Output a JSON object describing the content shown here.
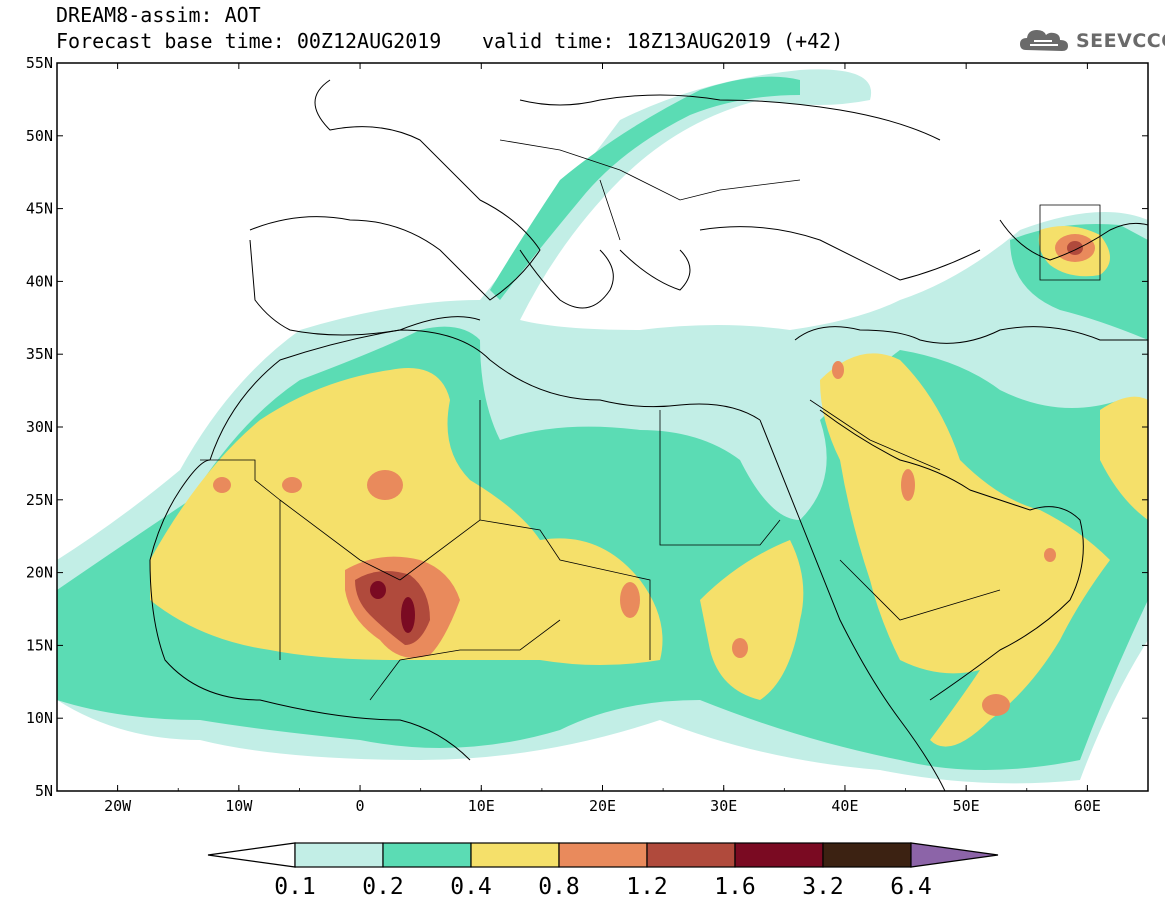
{
  "header": {
    "title": "DREAM8-assim: AOT",
    "base_time": "Forecast base time: 00Z12AUG2019",
    "valid_time": "valid time: 18Z13AUG2019 (+42)"
  },
  "logo": {
    "text": "SEEVCCC",
    "icon": "cloud-icon"
  },
  "map": {
    "lon_range": [
      -25,
      65
    ],
    "lat_range": [
      5,
      55
    ],
    "lat_labels": [
      "55N",
      "50N",
      "45N",
      "40N",
      "35N",
      "30N",
      "25N",
      "20N",
      "15N",
      "10N",
      "5N"
    ],
    "lon_labels": [
      "20W",
      "10W",
      "0",
      "10E",
      "20E",
      "30E",
      "40E",
      "50E",
      "60E"
    ]
  },
  "colorbar": {
    "labels": [
      "0.1",
      "0.2",
      "0.4",
      "0.8",
      "1.2",
      "1.6",
      "3.2",
      "6.4"
    ],
    "colors": [
      "#c2eee6",
      "#5bdcb4",
      "#f5e06a",
      "#e98a5c",
      "#b04a3c",
      "#7a0a22",
      "#3c2212",
      "#8c64a8"
    ],
    "under_color": "#ffffff"
  }
}
